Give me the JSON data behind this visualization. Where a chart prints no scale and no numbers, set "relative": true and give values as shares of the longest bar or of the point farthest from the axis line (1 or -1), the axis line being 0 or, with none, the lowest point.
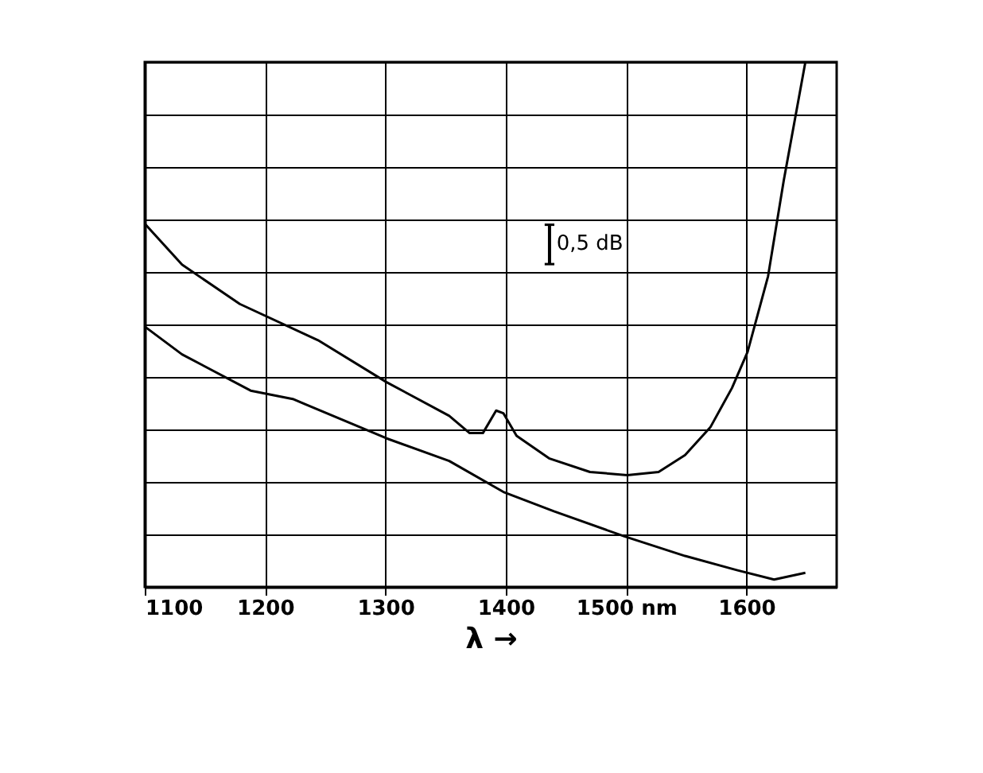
{
  "chart_data": {
    "type": "line",
    "relative": true,
    "xlabel": "λ →",
    "xlim": [
      1100,
      1675
    ],
    "xticks": [
      1100,
      1200,
      1300,
      1400,
      {
        "value": 1500,
        "label": "1500 nm"
      },
      1600
    ],
    "grid": true,
    "legend": false,
    "line_style": "solid",
    "tick_labels": "x",
    "annotations": [
      "0,5 dB"
    ],
    "series": [
      {
        "color": "#000000",
        "x": [
          1100,
          1131,
          1179,
          1244,
          1301,
          1353,
          1370,
          1381,
          1392,
          1398,
          1409,
          1436,
          1470,
          1501,
          1527,
          1549,
          1570,
          1588,
          1601,
          1618,
          1631,
          1649
        ],
        "values": [
          0.692,
          0.614,
          0.539,
          0.47,
          0.39,
          0.326,
          0.293,
          0.293,
          0.336,
          0.331,
          0.288,
          0.245,
          0.219,
          0.213,
          0.219,
          0.251,
          0.304,
          0.379,
          0.448,
          0.592,
          0.774,
          1.0
        ]
      },
      {
        "color": "#000000",
        "x": [
          1100,
          1131,
          1188,
          1223,
          1301,
          1353,
          1398,
          1440,
          1499,
          1549,
          1592,
          1623,
          1649
        ],
        "values": [
          0.496,
          0.443,
          0.374,
          0.358,
          0.283,
          0.24,
          0.181,
          0.144,
          0.096,
          0.059,
          0.032,
          0.014,
          0.027
        ]
      }
    ]
  }
}
